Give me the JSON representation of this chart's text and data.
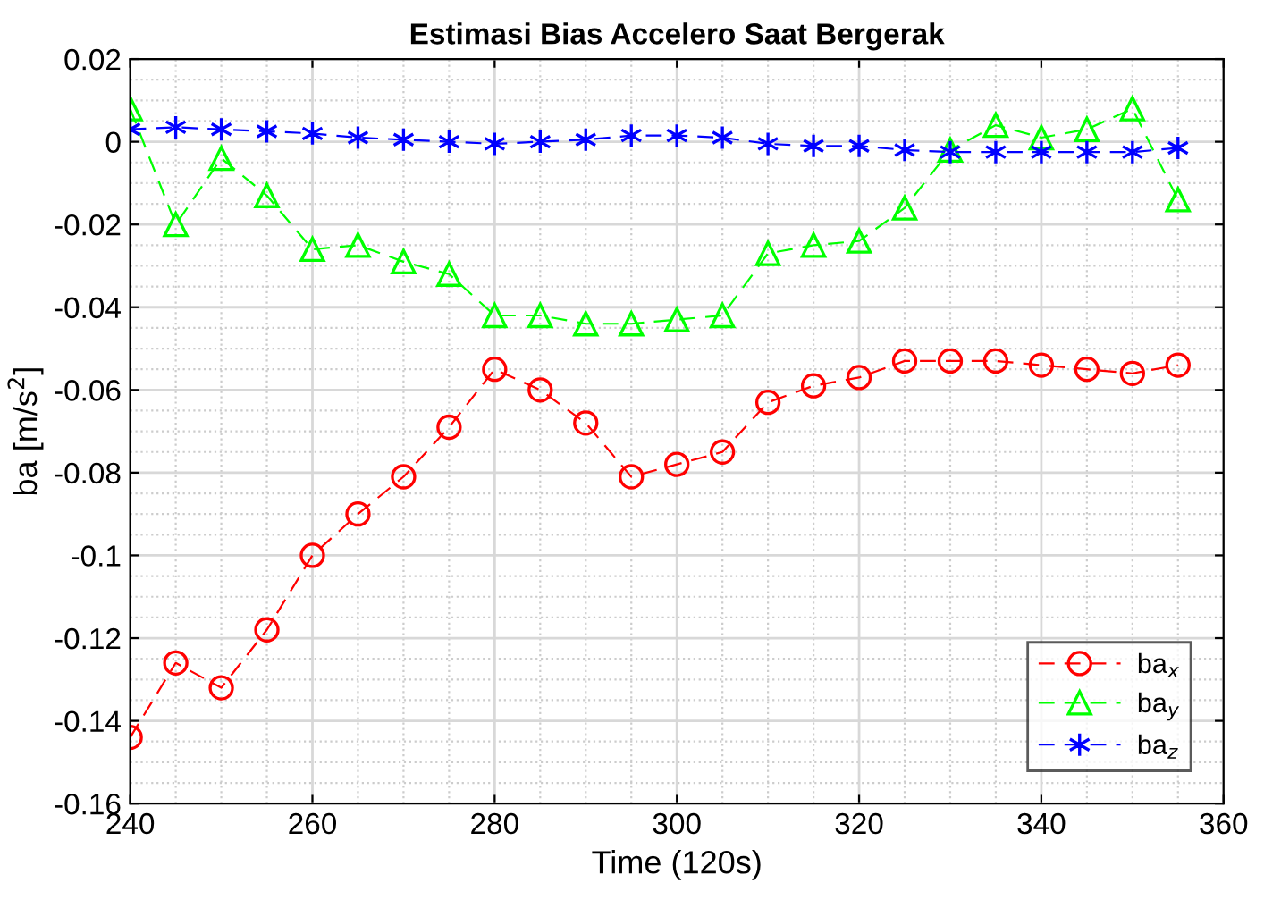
{
  "chart_data": {
    "type": "line",
    "title": "Estimasi Bias Accelero Saat Bergerak",
    "xlabel": "Time (120s)",
    "ylabel": "ba [m/s$^{2}$]",
    "x": [
      240,
      245,
      250,
      255,
      260,
      265,
      270,
      275,
      280,
      285,
      290,
      295,
      300,
      305,
      310,
      315,
      320,
      325,
      330,
      335,
      340,
      345,
      350,
      355
    ],
    "series": [
      {
        "name": "ba$_{x}$",
        "color": "#ff0000",
        "marker": "circle",
        "line_style": "dashed",
        "values": [
          -0.144,
          -0.126,
          -0.132,
          -0.118,
          -0.1,
          -0.09,
          -0.081,
          -0.069,
          -0.055,
          -0.06,
          -0.068,
          -0.081,
          -0.078,
          -0.075,
          -0.063,
          -0.059,
          -0.057,
          -0.053,
          -0.053,
          -0.053,
          -0.054,
          -0.055,
          -0.056,
          -0.054
        ]
      },
      {
        "name": "ba$_{y}$",
        "color": "#00ff00",
        "marker": "triangle",
        "line_style": "dashed",
        "values": [
          0.008,
          -0.02,
          -0.004,
          -0.013,
          -0.026,
          -0.025,
          -0.029,
          -0.032,
          -0.042,
          -0.042,
          -0.044,
          -0.044,
          -0.043,
          -0.042,
          -0.027,
          -0.025,
          -0.024,
          -0.016,
          -0.002,
          0.004,
          0.001,
          0.003,
          0.008,
          -0.014
        ]
      },
      {
        "name": "ba$_{z}$",
        "color": "#0000ff",
        "marker": "cross",
        "line_style": "dashed",
        "values": [
          0.003,
          0.0035,
          0.003,
          0.0025,
          0.002,
          0.001,
          0.0005,
          0,
          -0.0005,
          0,
          0.0005,
          0.0015,
          0.0015,
          0.001,
          -0.0005,
          -0.001,
          -0.001,
          -0.002,
          -0.0025,
          -0.0025,
          -0.0025,
          -0.0025,
          -0.0025,
          -0.0015
        ]
      }
    ],
    "xlim": [
      240,
      360
    ],
    "xticks": [
      240,
      260,
      280,
      300,
      320,
      340,
      360
    ],
    "ylim": [
      -0.16,
      0.02
    ],
    "yticks": [
      -0.16,
      -0.14,
      -0.12,
      {
        "value": -0.1,
        "label": "-0.1"
      },
      -0.08,
      -0.06,
      -0.04,
      -0.02,
      0,
      0.02
    ],
    "grid": true,
    "legend": "bottom right"
  }
}
